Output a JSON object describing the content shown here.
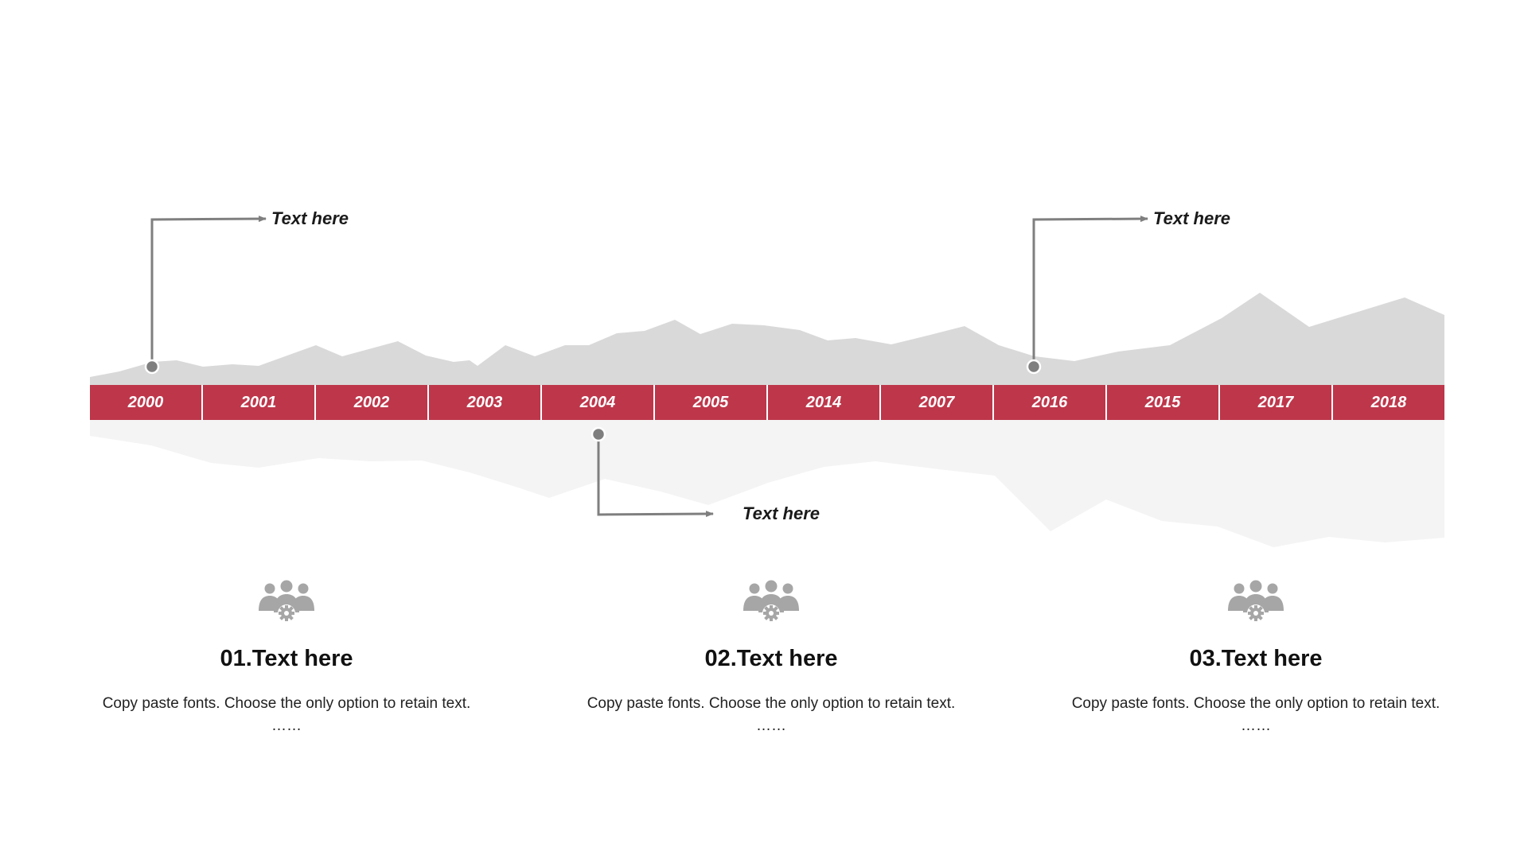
{
  "colors": {
    "accent": "#be364a",
    "terrain_top": "#d9d9d9",
    "terrain_bottom": "#f4f4f4",
    "connector": "#7f7f7f"
  },
  "timeline": {
    "years": [
      "2000",
      "2001",
      "2002",
      "2003",
      "2004",
      "2005",
      "2014",
      "2007",
      "2016",
      "2015",
      "2017",
      "2018"
    ]
  },
  "callouts": [
    {
      "label": "Text here",
      "anchor_year": "2000"
    },
    {
      "label": "Text here",
      "anchor_year": "2004"
    },
    {
      "label": "Text here",
      "anchor_year": "2016"
    }
  ],
  "columns": [
    {
      "icon": "team-gear-icon",
      "title": "01.Text here",
      "body": "Copy paste fonts. Choose the only option to retain text.",
      "ellipsis": "……"
    },
    {
      "icon": "team-gear-icon",
      "title": "02.Text here",
      "body": "Copy paste fonts. Choose the only option to retain text.",
      "ellipsis": "……"
    },
    {
      "icon": "team-gear-icon",
      "title": "03.Text here",
      "body": "Copy paste fonts. Choose the only option to retain text.",
      "ellipsis": "……"
    }
  ]
}
